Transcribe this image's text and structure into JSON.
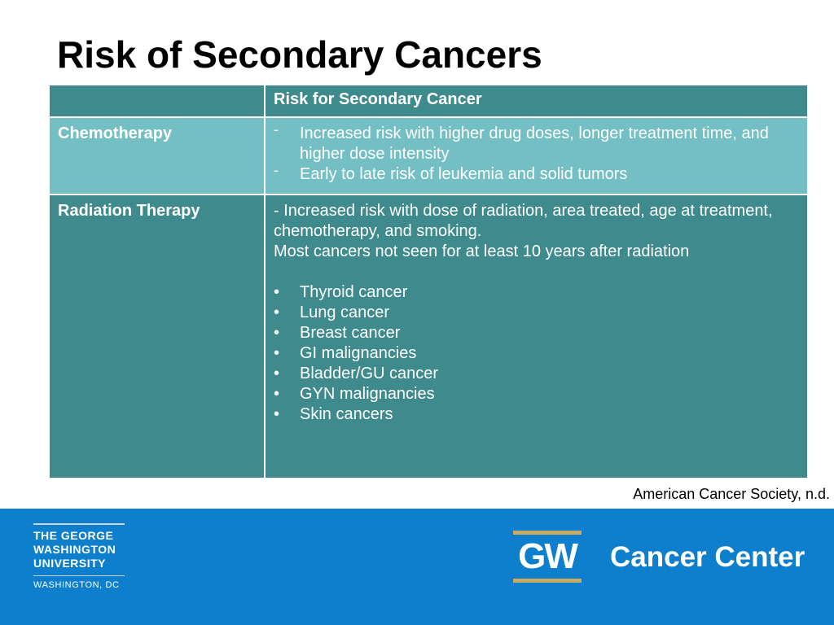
{
  "slide": {
    "title": "Risk of Secondary Cancers"
  },
  "table": {
    "header": {
      "col1": "",
      "col2": "Risk for Secondary Cancer"
    },
    "chemotherapy": {
      "label": "Chemotherapy",
      "bullet_marker": "-",
      "items": [
        "Increased risk with higher drug doses, longer treatment time, and higher dose intensity",
        "Early to late risk of leukemia and solid tumors"
      ]
    },
    "radiation": {
      "label": "Radiation Therapy",
      "intro": "- Increased risk with dose of radiation, area treated, age at treatment, chemotherapy, and smoking.",
      "note": "Most cancers not seen for at least 10 years after radiation",
      "bullet_marker": "•",
      "items": [
        "Thyroid cancer",
        "Lung cancer",
        "Breast cancer",
        "GI malignancies",
        "Bladder/GU cancer",
        "GYN malignancies",
        "Skin cancers"
      ]
    }
  },
  "source": "American Cancer Society, n.d.",
  "footer": {
    "university_lines": [
      "THE GEORGE",
      "WASHINGTON",
      "UNIVERSITY"
    ],
    "location": "WASHINGTON, DC",
    "gw_mark": "GW",
    "center_name": "Cancer Center"
  },
  "colors": {
    "table_dark": "#3f8a8c",
    "table_light": "#74bfc4",
    "footer_blue": "#0d7fcc",
    "gold": "#c9aa64"
  }
}
